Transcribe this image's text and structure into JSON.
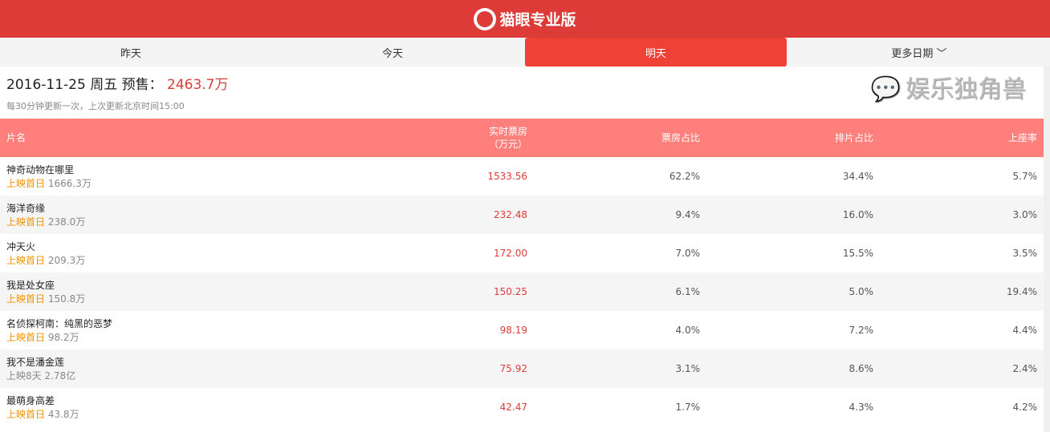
{
  "header": {
    "title": "猫眼专业版"
  },
  "tabs": [
    {
      "label": "昨天"
    },
    {
      "label": "今天"
    },
    {
      "label": "明天",
      "active": true
    },
    {
      "label": "更多日期 ﹀"
    }
  ],
  "summary": {
    "date": "2016-11-25 周五 预售：",
    "value": "2463.7万",
    "note": "每30分钟更新一次，上次更新北京时间15:00"
  },
  "columns": [
    "片名",
    "实时票房\n（万元）",
    "票房占比",
    "排片占比",
    "上座率"
  ],
  "rows": [
    {
      "name": "神奇动物在哪里",
      "release": "上映首日",
      "total": "1666.3万",
      "bo": "1533.56",
      "bo_share": "62.2%",
      "show_share": "34.4%",
      "seat": "5.7%"
    },
    {
      "name": "海洋奇缘",
      "release": "上映首日",
      "total": "238.0万",
      "bo": "232.48",
      "bo_share": "9.4%",
      "show_share": "16.0%",
      "seat": "3.0%"
    },
    {
      "name": "冲天火",
      "release": "上映首日",
      "total": "209.3万",
      "bo": "172.00",
      "bo_share": "7.0%",
      "show_share": "15.5%",
      "seat": "3.5%"
    },
    {
      "name": "我是处女座",
      "release": "上映首日",
      "total": "150.8万",
      "bo": "150.25",
      "bo_share": "6.1%",
      "show_share": "5.0%",
      "seat": "19.4%"
    },
    {
      "name": "名侦探柯南：纯黑的恶梦",
      "release": "上映首日",
      "total": "98.2万",
      "bo": "98.19",
      "bo_share": "4.0%",
      "show_share": "7.2%",
      "seat": "4.4%"
    },
    {
      "name": "我不是潘金莲",
      "release": "上映8天",
      "total": "2.78亿",
      "bo": "75.92",
      "bo_share": "3.1%",
      "show_share": "8.6%",
      "seat": "2.4%"
    },
    {
      "name": "最萌身高差",
      "release": "上映首日",
      "total": "43.8万",
      "bo": "42.47",
      "bo_share": "1.7%",
      "show_share": "4.3%",
      "seat": "4.2%"
    }
  ],
  "watermark": "娱乐独角兽"
}
